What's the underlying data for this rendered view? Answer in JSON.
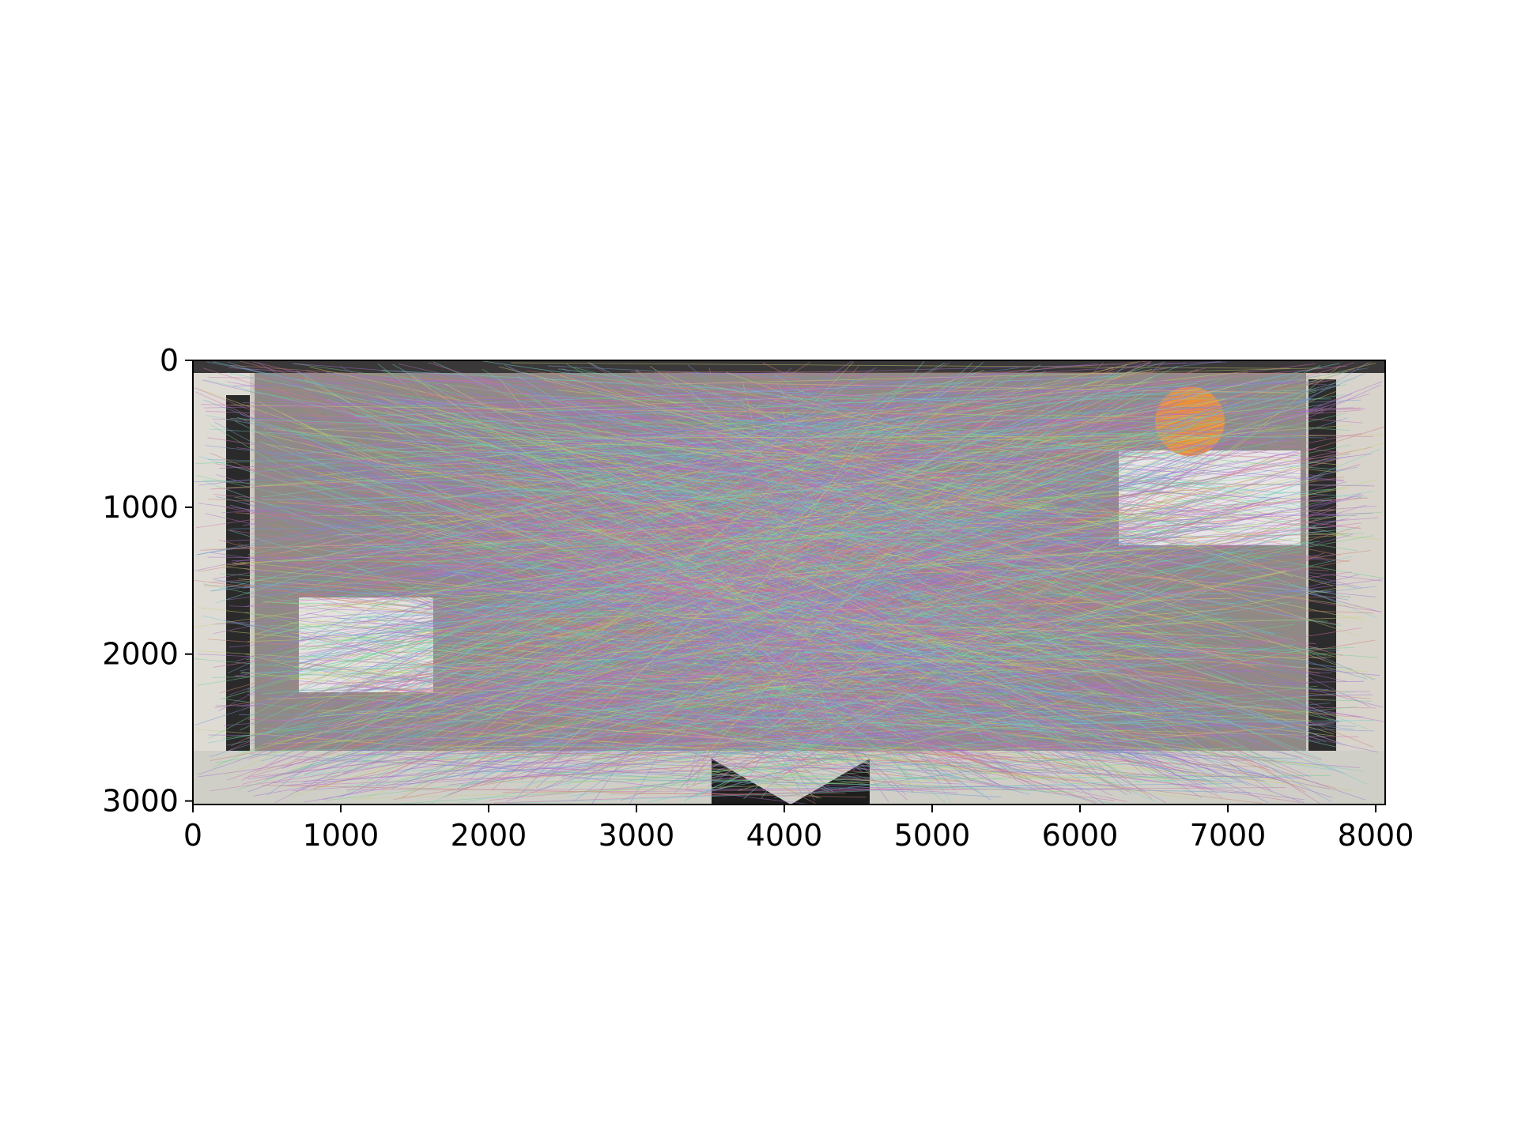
{
  "chart_data": {
    "type": "image",
    "description_kind": "feature-match visualization",
    "xlim": [
      0,
      8064
    ],
    "ylim": [
      3024,
      0
    ],
    "x_ticks": [
      0,
      1000,
      2000,
      3000,
      4000,
      5000,
      6000,
      7000,
      8000
    ],
    "y_ticks": [
      0,
      1000,
      2000,
      3000
    ],
    "x_tick_labels": [
      "0",
      "1000",
      "2000",
      "3000",
      "4000",
      "5000",
      "6000",
      "7000",
      "8000"
    ],
    "y_tick_labels": [
      "0",
      "1000",
      "2000",
      "3000"
    ],
    "grid": false,
    "colors": {
      "line_palette": [
        "#9a6fd0",
        "#6fd08a",
        "#d06fb0",
        "#6f9ad0",
        "#c8d06f",
        "#d0806f",
        "#6fd0c8",
        "#b06fd0"
      ],
      "panel_bg": "#d2cdc6",
      "frame": "#000000"
    }
  }
}
